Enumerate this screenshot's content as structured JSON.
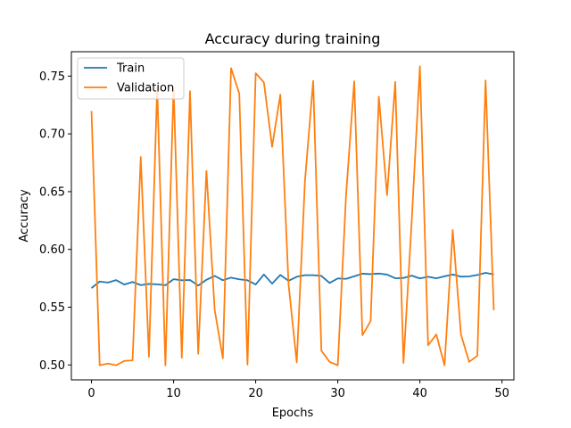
{
  "chart_data": {
    "type": "line",
    "title": "Accuracy during training",
    "xlabel": "Epochs",
    "ylabel": "Accuracy",
    "xlim": [
      -2.45,
      51.45
    ],
    "ylim": [
      0.4871,
      0.7711
    ],
    "xticks": [
      0,
      10,
      20,
      30,
      40,
      50
    ],
    "yticks": [
      0.5,
      0.55,
      0.6,
      0.65,
      0.7,
      0.75
    ],
    "ytick_labels": [
      "0.50",
      "0.55",
      "0.60",
      "0.65",
      "0.70",
      "0.75"
    ],
    "grid": false,
    "legend": "top-left",
    "x": [
      0,
      1,
      2,
      3,
      4,
      5,
      6,
      7,
      8,
      9,
      10,
      11,
      12,
      13,
      14,
      15,
      16,
      17,
      18,
      19,
      20,
      21,
      22,
      23,
      24,
      25,
      26,
      27,
      28,
      29,
      30,
      31,
      32,
      33,
      34,
      35,
      36,
      37,
      38,
      39,
      40,
      41,
      42,
      43,
      44,
      45,
      46,
      47,
      48,
      49
    ],
    "series": [
      {
        "name": "Train",
        "color": "#1f77b4",
        "values": [
          0.5665,
          0.5722,
          0.5713,
          0.5734,
          0.5696,
          0.5718,
          0.5691,
          0.5701,
          0.5698,
          0.569,
          0.5742,
          0.5733,
          0.5735,
          0.5687,
          0.5737,
          0.5771,
          0.5733,
          0.5756,
          0.5741,
          0.5733,
          0.5696,
          0.5783,
          0.5704,
          0.5779,
          0.5728,
          0.5763,
          0.5777,
          0.5777,
          0.5771,
          0.571,
          0.5749,
          0.5745,
          0.5767,
          0.579,
          0.5786,
          0.5791,
          0.5782,
          0.575,
          0.5753,
          0.5773,
          0.5749,
          0.5763,
          0.575,
          0.5767,
          0.5783,
          0.5764,
          0.5766,
          0.5779,
          0.5797,
          0.5784
        ]
      },
      {
        "name": "Validation",
        "color": "#ff7f0e",
        "values": [
          0.7198,
          0.4997,
          0.5012,
          0.4997,
          0.5035,
          0.504,
          0.68,
          0.507,
          0.7405,
          0.4997,
          0.7405,
          0.5062,
          0.7369,
          0.5097,
          0.668,
          0.548,
          0.5057,
          0.7569,
          0.7349,
          0.5002,
          0.7525,
          0.7446,
          0.6888,
          0.734,
          0.57,
          0.5022,
          0.659,
          0.7458,
          0.5123,
          0.5027,
          0.4997,
          0.646,
          0.7454,
          0.5257,
          0.538,
          0.7322,
          0.647,
          0.745,
          0.5017,
          0.624,
          0.7585,
          0.517,
          0.5264,
          0.4997,
          0.6168,
          0.5264,
          0.5027,
          0.508,
          0.7462,
          0.5474
        ]
      }
    ]
  }
}
